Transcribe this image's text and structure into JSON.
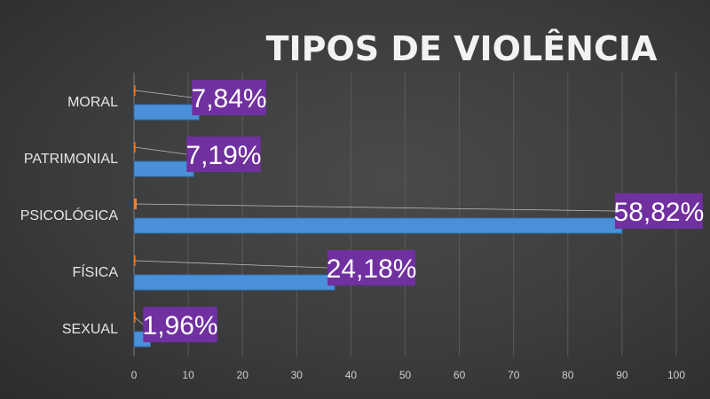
{
  "chart_data": {
    "type": "bar",
    "orientation": "horizontal",
    "title": "TIPOS DE VIOLÊNCIA",
    "categories": [
      "MORAL",
      "PATRIMONIAL",
      "PSICOLÓGICA",
      "FÍSICA",
      "SEXUAL"
    ],
    "series": [
      {
        "values": [
          12,
          11,
          90,
          37,
          3
        ],
        "color": "#4a90d9"
      },
      {
        "values": [
          0.1,
          0.1,
          0.5,
          0.2,
          0.1
        ],
        "color": "#ed7d31"
      }
    ],
    "data_labels": [
      "7,84%",
      "7,19%",
      "58,82%",
      "24,18%",
      "1,96%"
    ],
    "data_label_bg": "#7030a0",
    "x_ticks": [
      "0",
      "10",
      "20",
      "30",
      "40",
      "50",
      "60",
      "70",
      "80",
      "90",
      "100"
    ],
    "xlim": [
      0,
      100
    ],
    "grid": true,
    "legend": "none"
  }
}
